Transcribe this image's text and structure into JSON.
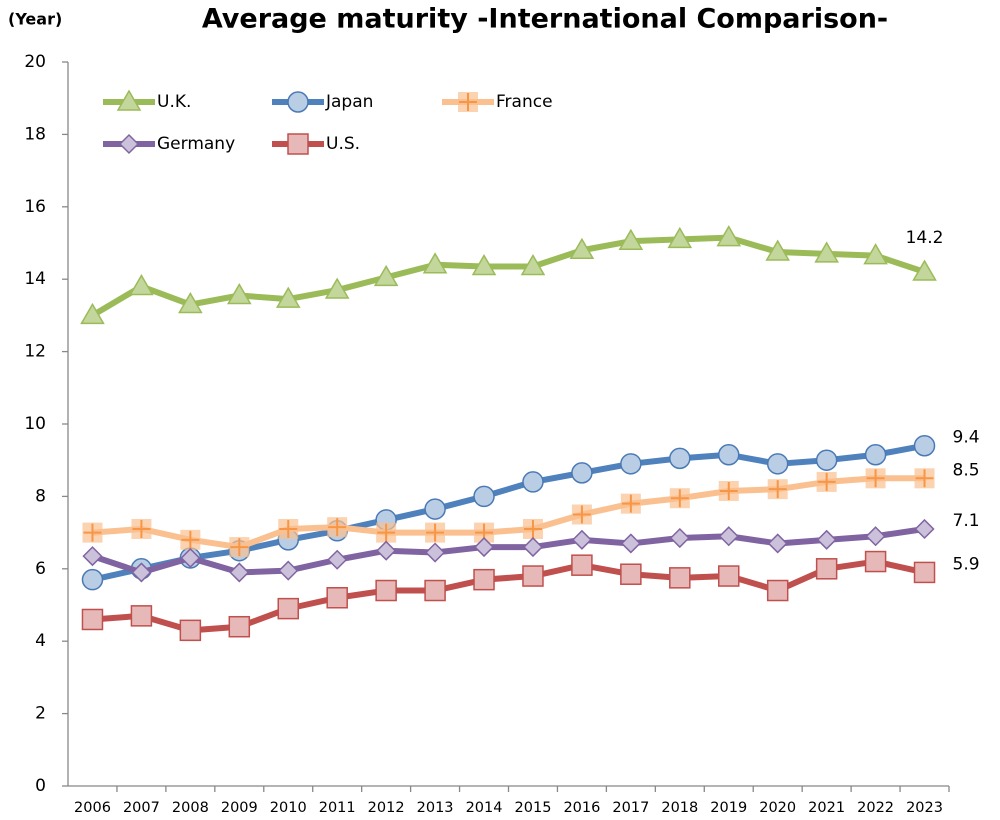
{
  "chart_data": {
    "type": "line",
    "title": "Average maturity   -International Comparison-",
    "y_axis_label": "(Year)",
    "categories": [
      "2006",
      "2007",
      "2008",
      "2009",
      "2010",
      "2011",
      "2012",
      "2013",
      "2014",
      "2015",
      "2016",
      "2017",
      "2018",
      "2019",
      "2020",
      "2021",
      "2022",
      "2023"
    ],
    "ylim": [
      0,
      20
    ],
    "yticks": [
      0,
      2,
      4,
      6,
      8,
      10,
      12,
      14,
      16,
      18,
      20
    ],
    "grid": false,
    "legend": "top-left",
    "series": [
      {
        "name": "U.K.",
        "color": "#9bbb59",
        "marker": "triangle",
        "marker_fill": "#c3d69b",
        "values": [
          13.0,
          13.8,
          13.3,
          13.55,
          13.45,
          13.7,
          14.05,
          14.4,
          14.35,
          14.35,
          14.8,
          15.05,
          15.1,
          15.15,
          14.75,
          14.7,
          14.65,
          14.2
        ]
      },
      {
        "name": "Japan",
        "color": "#4f81bd",
        "marker": "circle",
        "marker_fill": "#b9cde5",
        "values": [
          5.7,
          6.0,
          6.3,
          6.5,
          6.8,
          7.05,
          7.35,
          7.65,
          8.0,
          8.4,
          8.65,
          8.9,
          9.05,
          9.15,
          8.9,
          9.0,
          9.15,
          9.4
        ]
      },
      {
        "name": "France",
        "color": "#fac090",
        "marker": "plus",
        "marker_fill": "#f79646",
        "values": [
          7.0,
          7.1,
          6.8,
          6.6,
          7.1,
          7.15,
          7.0,
          7.0,
          7.0,
          7.1,
          7.5,
          7.8,
          7.95,
          8.15,
          8.2,
          8.4,
          8.5,
          8.5
        ]
      },
      {
        "name": "Germany",
        "color": "#8064a2",
        "marker": "diamond",
        "marker_fill": "#ccc1da",
        "values": [
          6.35,
          5.9,
          6.3,
          5.9,
          5.95,
          6.25,
          6.5,
          6.45,
          6.6,
          6.6,
          6.8,
          6.7,
          6.85,
          6.9,
          6.7,
          6.8,
          6.9,
          7.1
        ]
      },
      {
        "name": "U.S.",
        "color": "#c0504d",
        "marker": "square",
        "marker_fill": "#e6b9b8",
        "values": [
          4.6,
          4.7,
          4.3,
          4.4,
          4.9,
          5.2,
          5.4,
          5.4,
          5.7,
          5.8,
          6.1,
          5.85,
          5.75,
          5.8,
          5.4,
          6.0,
          6.2,
          5.9
        ]
      }
    ]
  }
}
